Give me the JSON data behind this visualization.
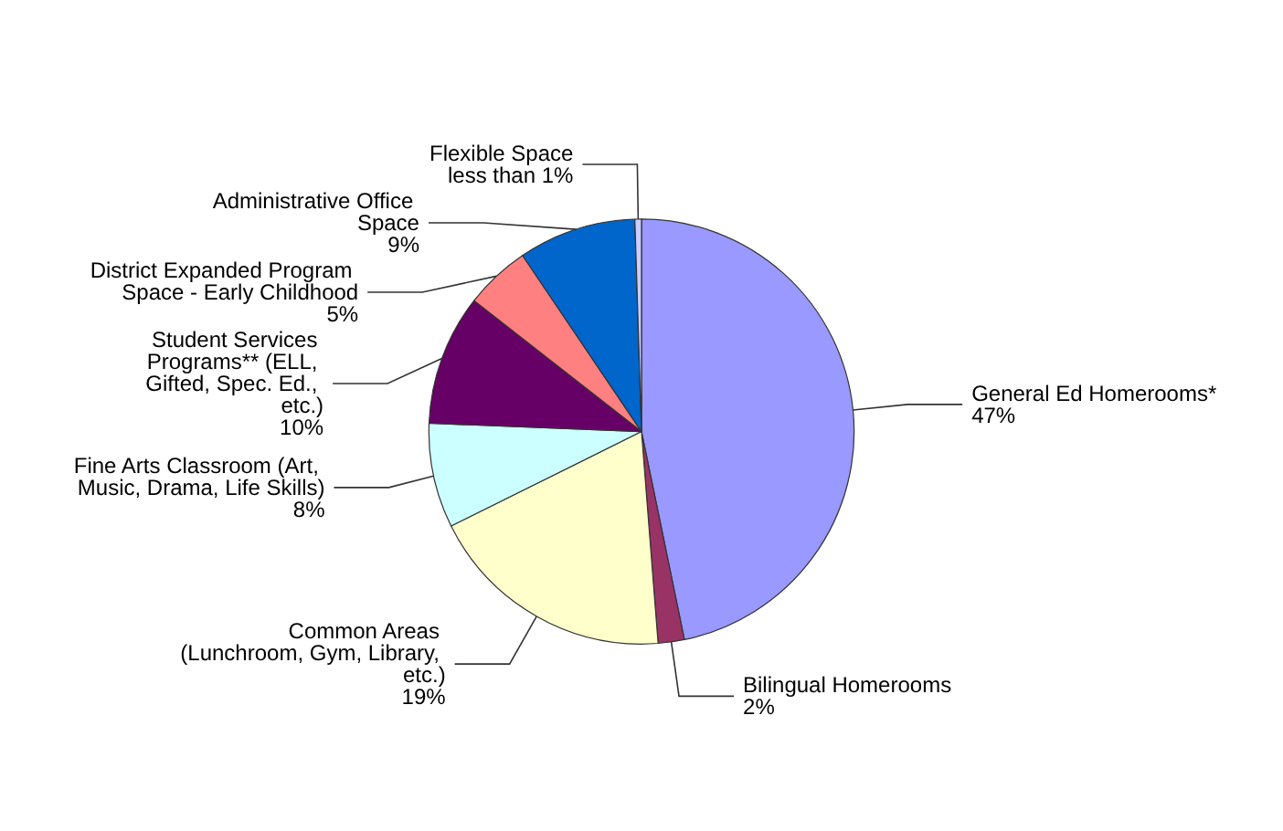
{
  "chart_data": {
    "type": "pie",
    "categories": [
      "General Ed Homerooms*",
      "Bilingual Homerooms",
      "Common Areas (Lunchroom, Gym, Library, etc.)",
      "Fine Arts Classroom (Art, Music, Drama, Life Skills)",
      "Student Services Programs** (ELL, Gifted, Spec. Ed., etc.)",
      "District Expanded Program Space - Early Childhood",
      "Administrative Office Space",
      "Flexible Space"
    ],
    "values": [
      47,
      2,
      19,
      8,
      10,
      5,
      9,
      0.5
    ],
    "value_labels": [
      "47%",
      "2%",
      "19%",
      "8%",
      "10%",
      "5%",
      "9%",
      "less than 1%"
    ],
    "colors": [
      "#9999ff",
      "#993366",
      "#ffffcc",
      "#ccffff",
      "#660066",
      "#ff8080",
      "#0066cc",
      "#ccccff"
    ],
    "legend": false
  }
}
